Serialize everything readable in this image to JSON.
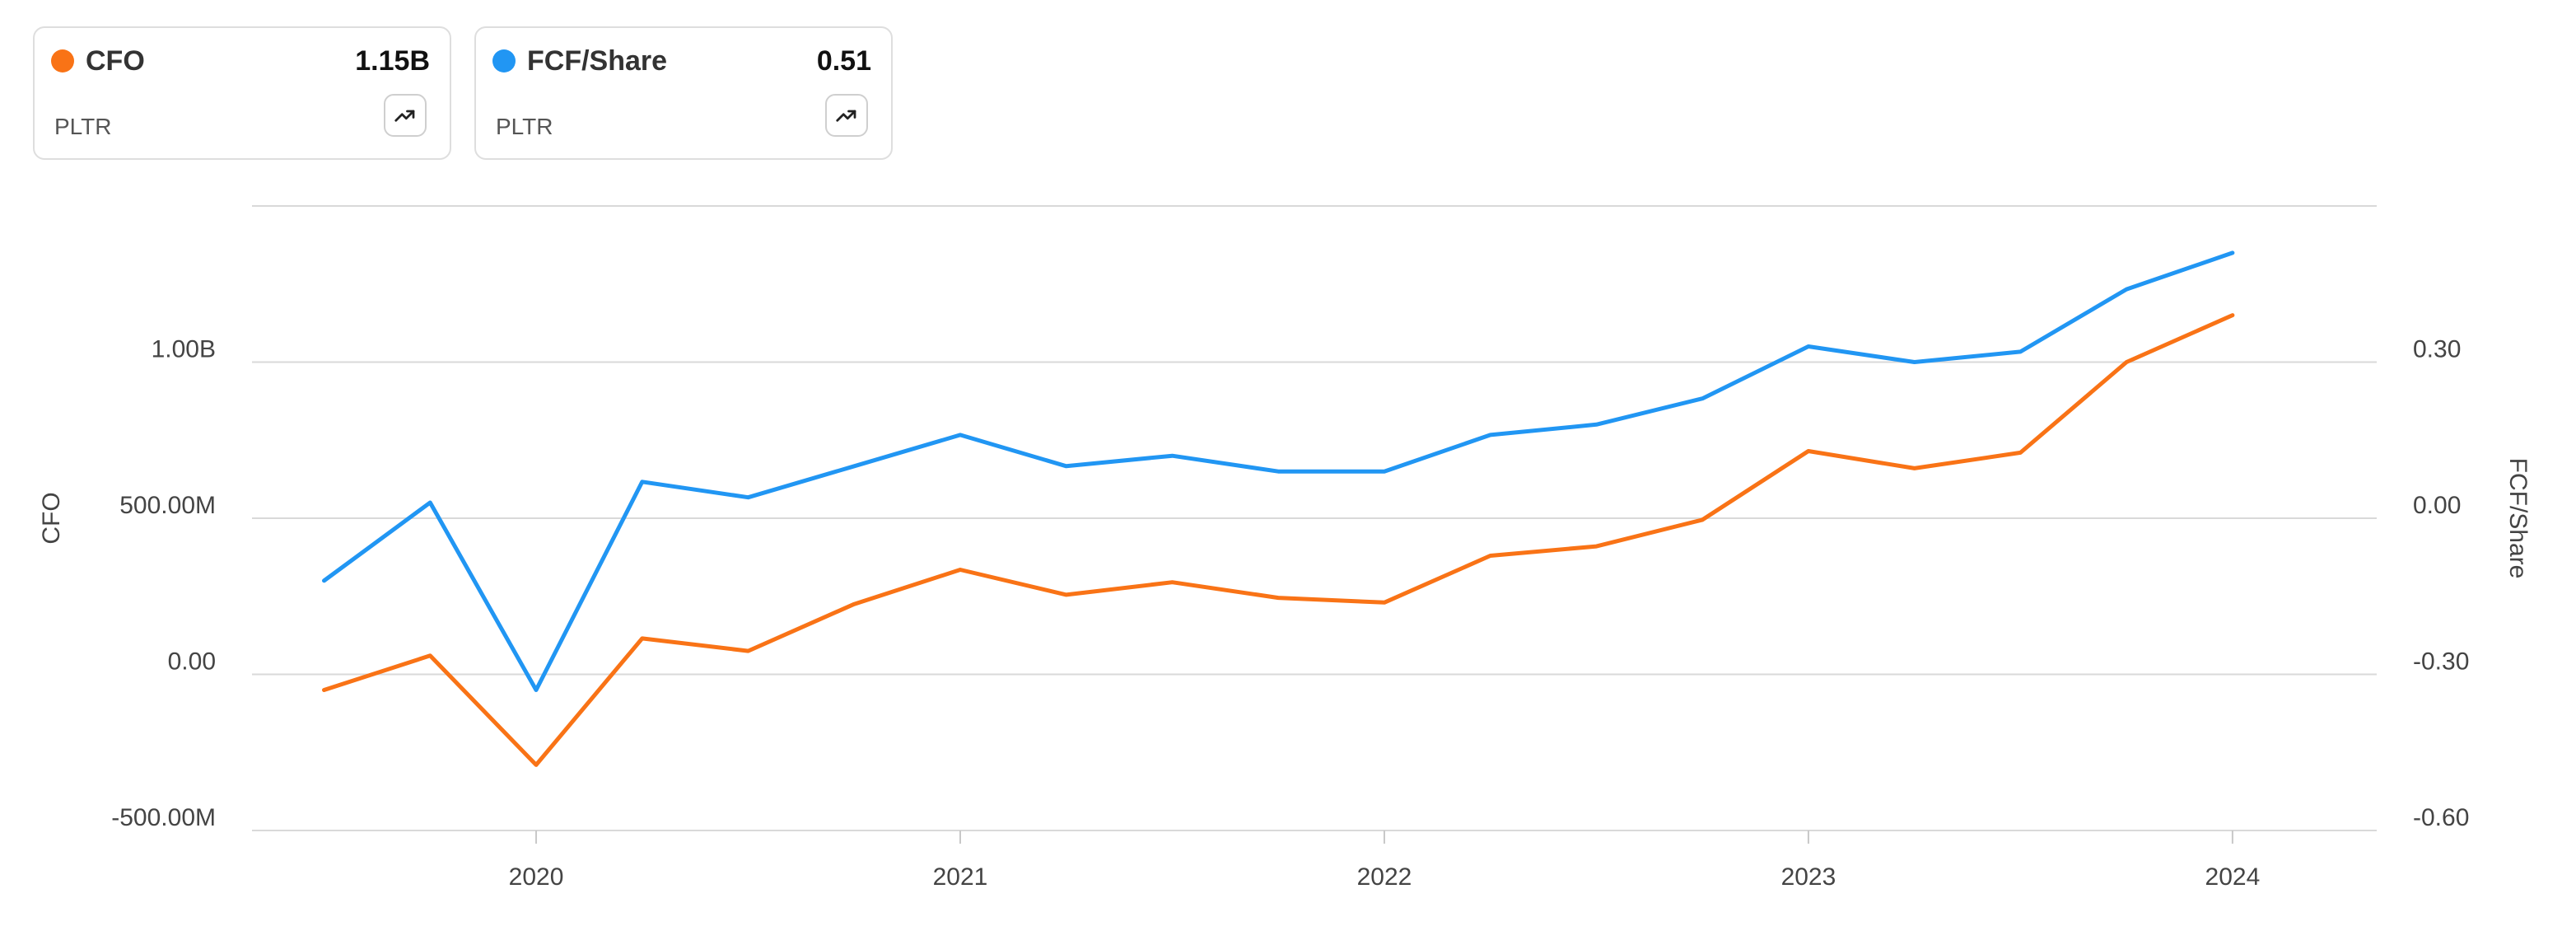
{
  "cards": [
    {
      "name": "CFO",
      "value": "1.15B",
      "ticker": "PLTR",
      "color": "#f97316",
      "icon": "trending-up-icon"
    },
    {
      "name": "FCF/Share",
      "value": "0.51",
      "ticker": "PLTR",
      "color": "#2196f3",
      "icon": "trending-up-icon"
    }
  ],
  "chart_data": {
    "type": "line",
    "x": [
      2019.5,
      2019.75,
      2020.0,
      2020.25,
      2020.5,
      2020.75,
      2021.0,
      2021.25,
      2021.5,
      2021.75,
      2022.0,
      2022.25,
      2022.5,
      2022.75,
      2023.0,
      2023.25,
      2023.5,
      2023.75,
      2024.0
    ],
    "x_ticks": [
      2020,
      2021,
      2022,
      2023,
      2024
    ],
    "x_tick_labels": [
      "2020",
      "2021",
      "2022",
      "2023",
      "2024"
    ],
    "xlim": [
      2019.33,
      2024.34
    ],
    "left_axis": {
      "label": "CFO",
      "ticks": [
        -500000000,
        0,
        500000000,
        1000000000
      ],
      "tick_labels": [
        "-500.00M",
        "0.00",
        "500.00M",
        "1.00B"
      ],
      "ylim": [
        -500000000,
        1500000000
      ]
    },
    "right_axis": {
      "label": "FCF/Share",
      "ticks": [
        -0.6,
        -0.3,
        0.0,
        0.3
      ],
      "tick_labels": [
        "-0.60",
        "-0.30",
        "0.00",
        "0.30"
      ],
      "ylim": [
        -0.6,
        0.6
      ]
    },
    "series": [
      {
        "name": "CFO",
        "axis": "left",
        "color": "#f97316",
        "values": [
          -50000000,
          60000000,
          -290000000,
          115000000,
          75000000,
          225000000,
          335000000,
          255000000,
          295000000,
          245000000,
          230000000,
          380000000,
          410000000,
          495000000,
          715000000,
          660000000,
          710000000,
          1000000000,
          1150000000
        ]
      },
      {
        "name": "FCF/Share",
        "axis": "right",
        "color": "#2196f3",
        "values": [
          -0.12,
          0.03,
          -0.33,
          0.07,
          0.04,
          0.1,
          0.16,
          0.1,
          0.12,
          0.09,
          0.09,
          0.16,
          0.18,
          0.23,
          0.33,
          0.3,
          0.32,
          0.44,
          0.51
        ]
      }
    ],
    "grid": "horizontal"
  }
}
